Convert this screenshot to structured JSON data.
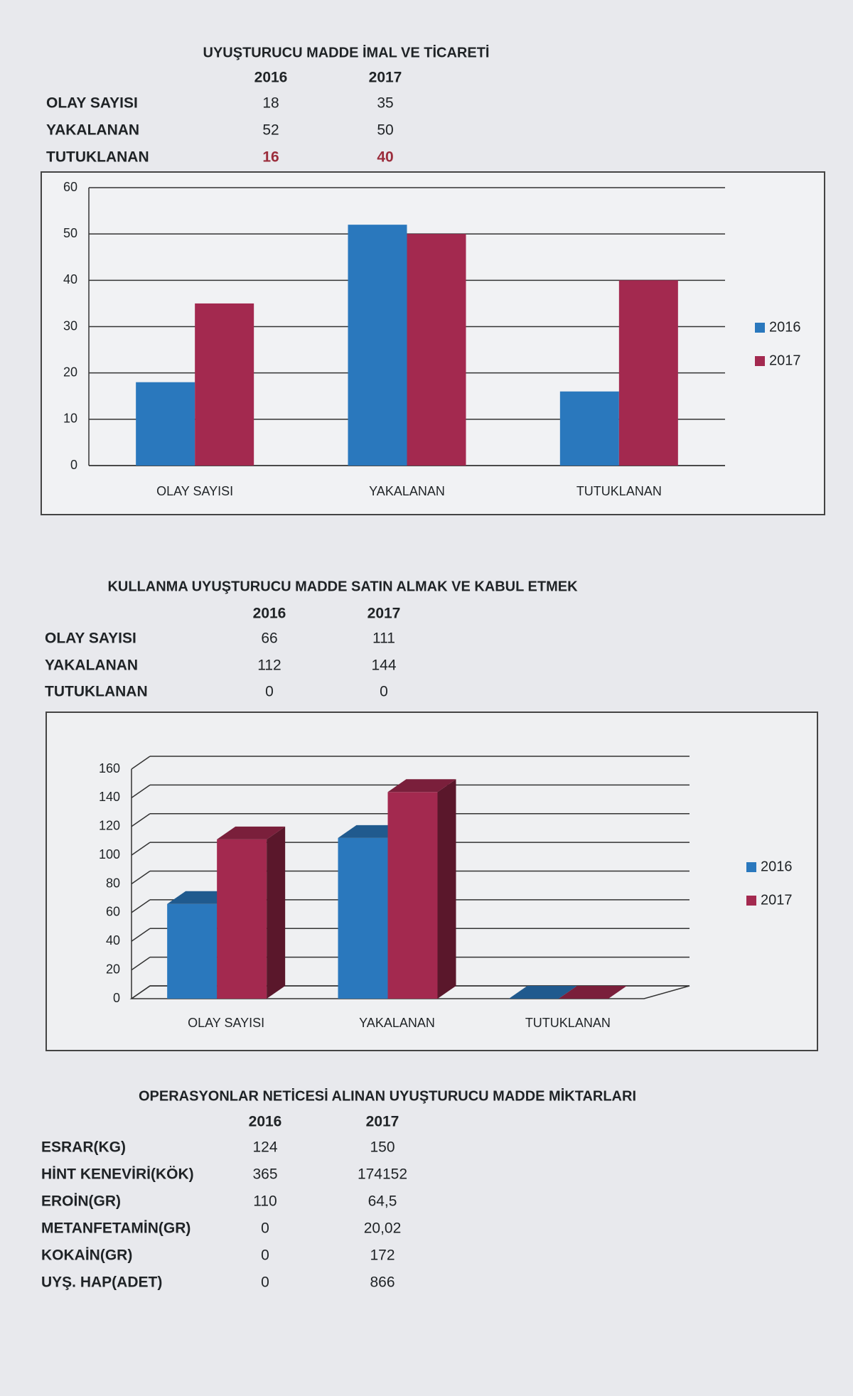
{
  "sections": [
    {
      "title": "UYUŞTURUCU MADDE İMAL VE TİCARETİ",
      "columns": [
        "2016",
        "2017"
      ],
      "rows": [
        {
          "label": "OLAY SAYISI",
          "values": [
            18,
            35
          ]
        },
        {
          "label": "YAKALANAN",
          "values": [
            52,
            50
          ]
        },
        {
          "label": "TUTUKLANAN",
          "values": [
            16,
            40
          ],
          "color": "#9b2d3c"
        }
      ],
      "chart": {
        "type": "bar",
        "ylim": [
          0,
          60
        ],
        "yticks": [
          0,
          10,
          20,
          30,
          40,
          50,
          60
        ],
        "grid": true,
        "legend": "right",
        "colors": [
          "#2a78bd",
          "#a3294f"
        ]
      }
    },
    {
      "title": "KULLANMA UYUŞTURUCU MADDE SATIN ALMAK VE KABUL ETMEK",
      "columns": [
        "2016",
        "2017"
      ],
      "rows": [
        {
          "label": "OLAY SAYISI",
          "values": [
            66,
            111
          ]
        },
        {
          "label": "YAKALANAN",
          "values": [
            112,
            144
          ]
        },
        {
          "label": "TUTUKLANAN",
          "values": [
            0,
            0
          ]
        }
      ],
      "chart": {
        "type": "bar3d",
        "ylim": [
          0,
          160
        ],
        "yticks": [
          0,
          20,
          40,
          60,
          80,
          100,
          120,
          140,
          160
        ],
        "grid": true,
        "legend": "right",
        "colors": [
          "#2a78bd",
          "#a3294f"
        ]
      }
    },
    {
      "title": "OPERASYONLAR NETİCESİ ALINAN UYUŞTURUCU MADDE MİKTARLARI",
      "columns": [
        "2016",
        "2017"
      ],
      "rows": [
        {
          "label": "ESRAR(KG)",
          "values": [
            "124",
            "150"
          ]
        },
        {
          "label": "HİNT KENEVİRİ(KÖK)",
          "values": [
            "365",
            "174152"
          ]
        },
        {
          "label": "EROİN(GR)",
          "values": [
            "110",
            "64,5"
          ]
        },
        {
          "label": "METANFETAMİN(GR)",
          "values": [
            "0",
            "20,02"
          ]
        },
        {
          "label": "KOKAİN(GR)",
          "values": [
            "0",
            "172"
          ]
        },
        {
          "label": "UYŞ. HAP(ADET)",
          "values": [
            "0",
            "866"
          ]
        }
      ]
    }
  ]
}
